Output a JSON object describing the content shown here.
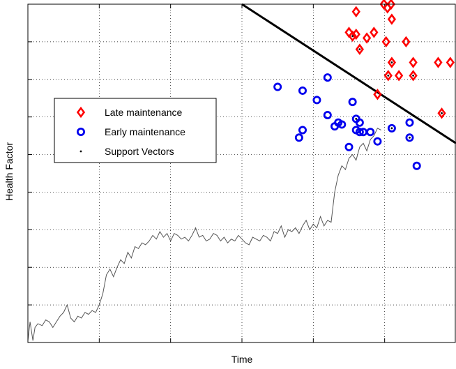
{
  "chart_data": {
    "type": "scatter",
    "title": "",
    "xlabel": "Time",
    "ylabel": "Health Factor",
    "xlim": [
      0,
      6
    ],
    "ylim": [
      0,
      9
    ],
    "grid": true,
    "legend_position": "left",
    "colors": {
      "late": "#ff0000",
      "early": "#0000ee",
      "support": "#000000",
      "trace": "#555555",
      "boundary": "#000000"
    },
    "legend": [
      {
        "key": "late",
        "label": "Late maintenance",
        "marker": "diamond"
      },
      {
        "key": "early",
        "label": "Early maintenance",
        "marker": "circle"
      },
      {
        "key": "support",
        "label": "Support Vectors",
        "marker": "dot"
      }
    ],
    "decision_boundary": {
      "x": [
        3.0,
        6.0
      ],
      "y": [
        9.0,
        5.3
      ]
    },
    "series": [
      {
        "name": "Late maintenance",
        "key": "late",
        "points": [
          [
            4.6,
            8.8
          ],
          [
            4.99,
            9.0
          ],
          [
            5.09,
            9.0
          ],
          [
            5.04,
            8.9
          ],
          [
            4.85,
            8.25
          ],
          [
            4.75,
            8.1
          ],
          [
            4.5,
            8.25
          ],
          [
            4.55,
            8.15
          ],
          [
            4.6,
            8.2
          ],
          [
            4.65,
            7.8
          ],
          [
            5.02,
            8.0
          ],
          [
            5.1,
            8.6
          ],
          [
            5.3,
            8.0
          ],
          [
            5.1,
            7.45
          ],
          [
            5.05,
            7.1
          ],
          [
            5.2,
            7.1
          ],
          [
            5.4,
            7.1
          ],
          [
            5.4,
            7.45
          ],
          [
            5.75,
            7.45
          ],
          [
            5.92,
            7.45
          ],
          [
            4.9,
            6.6
          ],
          [
            5.8,
            6.1
          ]
        ]
      },
      {
        "name": "Early maintenance",
        "key": "early",
        "points": [
          [
            3.5,
            6.8
          ],
          [
            3.85,
            6.7
          ],
          [
            4.05,
            6.45
          ],
          [
            4.2,
            7.05
          ],
          [
            4.55,
            6.4
          ],
          [
            4.2,
            6.05
          ],
          [
            4.3,
            5.75
          ],
          [
            4.35,
            5.85
          ],
          [
            4.4,
            5.8
          ],
          [
            4.6,
            5.95
          ],
          [
            4.65,
            5.85
          ],
          [
            4.6,
            5.65
          ],
          [
            4.7,
            5.6
          ],
          [
            4.65,
            5.6
          ],
          [
            4.8,
            5.6
          ],
          [
            4.5,
            5.2
          ],
          [
            4.9,
            5.35
          ],
          [
            5.1,
            5.7
          ],
          [
            5.35,
            5.85
          ],
          [
            5.35,
            5.45
          ],
          [
            5.45,
            4.7
          ],
          [
            3.85,
            5.65
          ],
          [
            3.8,
            5.45
          ]
        ]
      },
      {
        "name": "Support Vectors",
        "key": "support",
        "points": [
          [
            4.65,
            7.8
          ],
          [
            4.55,
            8.15
          ],
          [
            5.05,
            7.1
          ],
          [
            5.4,
            7.1
          ],
          [
            5.1,
            7.45
          ],
          [
            5.8,
            6.1
          ],
          [
            5.1,
            5.7
          ],
          [
            5.35,
            5.45
          ],
          [
            4.6,
            5.95
          ]
        ]
      }
    ],
    "trace": {
      "name": "",
      "x": [
        0.0,
        0.03,
        0.07,
        0.1,
        0.14,
        0.2,
        0.25,
        0.3,
        0.35,
        0.4,
        0.45,
        0.5,
        0.55,
        0.6,
        0.65,
        0.7,
        0.75,
        0.8,
        0.85,
        0.9,
        0.95,
        1.0,
        1.05,
        1.1,
        1.15,
        1.2,
        1.25,
        1.3,
        1.35,
        1.4,
        1.45,
        1.5,
        1.55,
        1.6,
        1.65,
        1.7,
        1.75,
        1.8,
        1.85,
        1.9,
        1.95,
        2.0,
        2.05,
        2.1,
        2.15,
        2.2,
        2.25,
        2.3,
        2.35,
        2.4,
        2.45,
        2.5,
        2.55,
        2.6,
        2.65,
        2.7,
        2.75,
        2.8,
        2.85,
        2.9,
        2.95,
        3.0,
        3.05,
        3.1,
        3.15,
        3.2,
        3.25,
        3.3,
        3.35,
        3.4,
        3.45,
        3.5,
        3.55,
        3.6,
        3.65,
        3.7,
        3.75,
        3.8,
        3.85,
        3.9,
        3.95,
        4.0,
        4.05,
        4.1,
        4.15,
        4.2,
        4.25,
        4.3,
        4.35,
        4.4,
        4.45,
        4.5,
        4.55,
        4.6,
        4.65,
        4.7,
        4.75,
        4.8,
        4.85,
        4.9,
        4.95
      ],
      "y": [
        0.05,
        0.55,
        0.05,
        0.4,
        0.5,
        0.45,
        0.6,
        0.55,
        0.4,
        0.55,
        0.7,
        0.8,
        1.0,
        0.65,
        0.55,
        0.7,
        0.65,
        0.8,
        0.75,
        0.85,
        0.8,
        1.0,
        1.3,
        1.8,
        1.95,
        1.75,
        2.0,
        2.2,
        2.1,
        2.4,
        2.25,
        2.55,
        2.5,
        2.65,
        2.6,
        2.7,
        2.85,
        2.75,
        2.95,
        2.8,
        2.9,
        2.7,
        2.9,
        2.85,
        2.75,
        2.8,
        2.7,
        2.85,
        3.05,
        2.8,
        2.85,
        2.7,
        2.75,
        2.9,
        2.85,
        2.7,
        2.8,
        2.65,
        2.75,
        2.7,
        2.85,
        2.75,
        2.65,
        2.6,
        2.8,
        2.75,
        2.7,
        2.85,
        2.8,
        2.7,
        2.95,
        2.9,
        3.1,
        2.8,
        3.0,
        2.95,
        3.05,
        2.9,
        3.1,
        3.25,
        3.0,
        3.15,
        3.05,
        3.35,
        3.1,
        3.25,
        3.2,
        4.0,
        4.45,
        4.7,
        4.6,
        4.9,
        5.0,
        4.85,
        5.2,
        5.3,
        5.1,
        5.4,
        5.5,
        5.7,
        5.65
      ]
    }
  }
}
